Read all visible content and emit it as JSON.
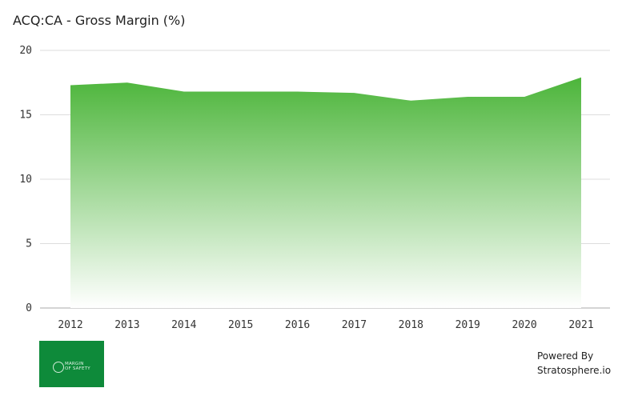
{
  "chart_data": {
    "type": "area",
    "title": "ACQ:CA - Gross Margin (%)",
    "xlabel": "",
    "ylabel": "",
    "categories": [
      "2012",
      "2013",
      "2014",
      "2015",
      "2016",
      "2017",
      "2018",
      "2019",
      "2020",
      "2021"
    ],
    "series": [
      {
        "values": [
          17.3,
          17.5,
          16.8,
          16.8,
          16.8,
          16.7,
          16.1,
          16.4,
          16.4,
          17.9
        ]
      }
    ],
    "ylim": [
      0,
      20
    ],
    "yticks": [
      "0",
      "5",
      "10",
      "15",
      "20"
    ],
    "grid": true,
    "legend": "none",
    "colors": {
      "fill_top": "#4cb53a",
      "fill_bottom": "#ffffff",
      "grid": "#dddddd",
      "axis": "#aaaaaa"
    }
  },
  "branding": {
    "logo_text": "MARGIN\nOF SAFETY",
    "powered_by": "Powered By",
    "site": "Stratosphere.io"
  }
}
